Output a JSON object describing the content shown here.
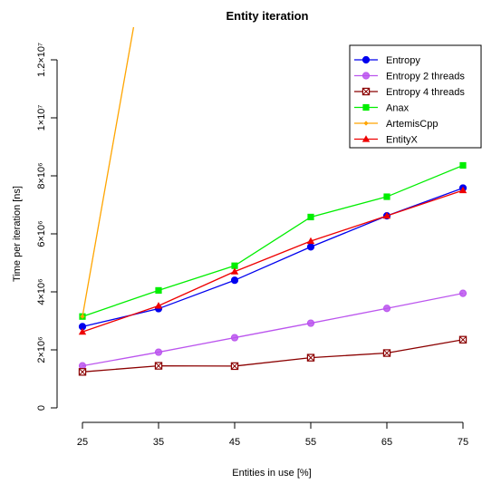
{
  "chart_data": {
    "type": "line",
    "title": "Entity iteration",
    "xlabel": "Entities in use [%]",
    "ylabel": "Time per iteration [ns]",
    "x": [
      25,
      35,
      45,
      55,
      65,
      75
    ],
    "xlim": [
      25,
      75
    ],
    "ylim": [
      0,
      12000000
    ],
    "x_ticks": [
      "25",
      "35",
      "45",
      "55",
      "65",
      "75"
    ],
    "y_ticks": [
      {
        "value": 0,
        "label": "0"
      },
      {
        "value": 2000000,
        "label": "2×10⁶"
      },
      {
        "value": 4000000,
        "label": "4×10⁶"
      },
      {
        "value": 6000000,
        "label": "6×10⁶"
      },
      {
        "value": 8000000,
        "label": "8×10⁶"
      },
      {
        "value": 10000000,
        "label": "1×10⁷"
      },
      {
        "value": 12000000,
        "label": "1.2×10⁷"
      }
    ],
    "grid": false,
    "legend_position": "top-right",
    "series": [
      {
        "name": "Entropy",
        "color": "#0000ee",
        "marker": "circle",
        "values": [
          2800000,
          3420000,
          4400000,
          5550000,
          6620000,
          7580000
        ]
      },
      {
        "name": "Entropy 2 threads",
        "color": "#bb55ee",
        "marker": "circle-open",
        "values": [
          1450000,
          1920000,
          2420000,
          2920000,
          3430000,
          3950000
        ]
      },
      {
        "name": "Entropy 4 threads",
        "color": "#8b0000",
        "marker": "square-x",
        "values": [
          1240000,
          1450000,
          1440000,
          1730000,
          1890000,
          2350000
        ]
      },
      {
        "name": "Anax",
        "color": "#00ee00",
        "marker": "square",
        "values": [
          3150000,
          4050000,
          4900000,
          6580000,
          7280000,
          8360000
        ]
      },
      {
        "name": "ArtemisCpp",
        "color": "#ffa500",
        "marker": "diamond",
        "values": [
          3150000,
          18000000,
          null,
          null,
          null,
          null
        ]
      },
      {
        "name": "EntityX",
        "color": "#ee0000",
        "marker": "triangle",
        "values": [
          2620000,
          3520000,
          4700000,
          5750000,
          6620000,
          7500000
        ]
      }
    ]
  }
}
